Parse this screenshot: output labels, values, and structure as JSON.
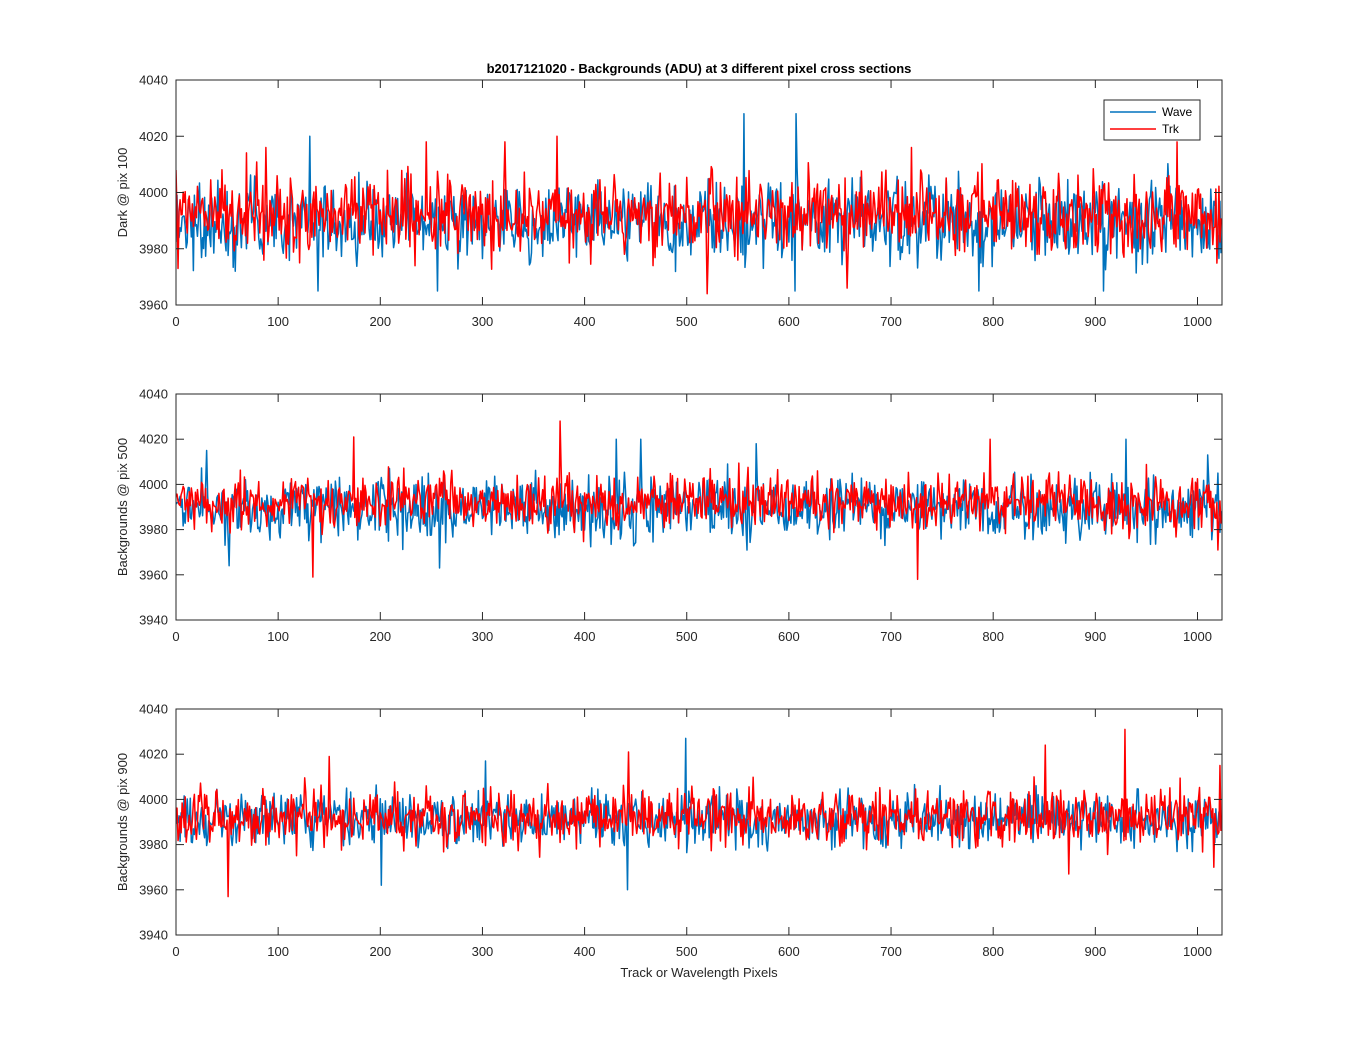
{
  "title": "b2017121020 - Backgrounds (ADU) at 3 different pixel cross sections",
  "xlabel": "Track or Wavelength Pixels",
  "colors": {
    "wave": "#0072BD",
    "trk": "#FF0000"
  },
  "legend": {
    "placement": "top-right",
    "entries": [
      "Wave",
      "Trk"
    ]
  },
  "chart_data": [
    {
      "type": "line",
      "ylabel": "Dark @ pix 100",
      "xlim": [
        0,
        1024
      ],
      "ylim": [
        3960,
        4040
      ],
      "xticks": [
        0,
        100,
        200,
        300,
        400,
        500,
        600,
        700,
        800,
        900,
        1000
      ],
      "yticks": [
        3960,
        3980,
        4000,
        4020,
        4040
      ],
      "grid": false,
      "series": [
        {
          "name": "Wave",
          "n_points": 1024,
          "baseline": 3990,
          "spread": 7,
          "spikes": [
            [
              131,
              4020
            ],
            [
              556,
              4028
            ],
            [
              607,
              4028
            ],
            [
              139,
              3965
            ],
            [
              256,
              3965
            ],
            [
              606,
              3965
            ],
            [
              786,
              3965
            ],
            [
              908,
              3965
            ]
          ]
        },
        {
          "name": "Trk",
          "n_points": 1024,
          "baseline": 3992,
          "spread": 7,
          "spikes": [
            [
              88,
              4016
            ],
            [
              245,
              4018
            ],
            [
              322,
              4018
            ],
            [
              373,
              4020
            ],
            [
              720,
              4016
            ],
            [
              980,
              4018
            ],
            [
              520,
              3964
            ],
            [
              657,
              3966
            ],
            [
              2,
              3973
            ]
          ]
        }
      ]
    },
    {
      "type": "line",
      "ylabel": "Backgrounds @ pix 500",
      "xlim": [
        0,
        1024
      ],
      "ylim": [
        3940,
        4040
      ],
      "xticks": [
        0,
        100,
        200,
        300,
        400,
        500,
        600,
        700,
        800,
        900,
        1000
      ],
      "yticks": [
        3940,
        3960,
        3980,
        4000,
        4020,
        4040
      ],
      "grid": false,
      "series": [
        {
          "name": "Wave",
          "n_points": 1024,
          "baseline": 3990,
          "spread": 7,
          "spikes": [
            [
              30,
              4015
            ],
            [
              431,
              4020
            ],
            [
              455,
              4020
            ],
            [
              568,
              4018
            ],
            [
              930,
              4020
            ],
            [
              1010,
              4013
            ],
            [
              258,
              3963
            ],
            [
              52,
              3964
            ]
          ]
        },
        {
          "name": "Trk",
          "n_points": 1024,
          "baseline": 3992,
          "spread": 6,
          "spikes": [
            [
              174,
              4021
            ],
            [
              376,
              4028
            ],
            [
              797,
              4020
            ],
            [
              134,
              3959
            ],
            [
              726,
              3958
            ],
            [
              1020,
              3971
            ]
          ]
        }
      ]
    },
    {
      "type": "line",
      "ylabel": "Backgrounds @ pix 900",
      "xlim": [
        0,
        1024
      ],
      "ylim": [
        3940,
        4040
      ],
      "xticks": [
        0,
        100,
        200,
        300,
        400,
        500,
        600,
        700,
        800,
        900,
        1000
      ],
      "yticks": [
        3940,
        3960,
        3980,
        4000,
        4020,
        4040
      ],
      "grid": false,
      "series": [
        {
          "name": "Wave",
          "n_points": 1024,
          "baseline": 3991,
          "spread": 6,
          "spikes": [
            [
              499,
              4027
            ],
            [
              303,
              4017
            ],
            [
              201,
              3962
            ],
            [
              442,
              3960
            ]
          ]
        },
        {
          "name": "Trk",
          "n_points": 1024,
          "baseline": 3992,
          "spread": 6,
          "spikes": [
            [
              51,
              3957
            ],
            [
              150,
              4019
            ],
            [
              443,
              4021
            ],
            [
              851,
              4024
            ],
            [
              929,
              4031
            ],
            [
              1022,
              4015
            ],
            [
              874,
              3967
            ],
            [
              1016,
              3970
            ]
          ]
        }
      ]
    }
  ]
}
